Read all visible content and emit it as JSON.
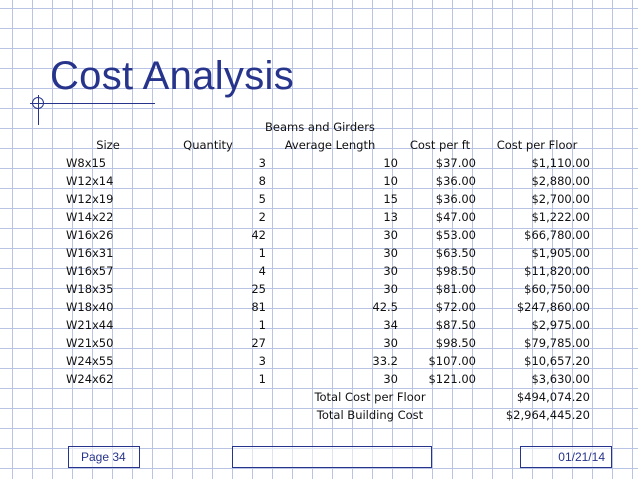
{
  "title": "Cost Analysis",
  "table": {
    "group_header": "Beams and Girders",
    "columns": [
      "Size",
      "Quantity",
      "Average Length",
      "Cost per ft",
      "Cost per Floor"
    ],
    "rows": [
      [
        "W8x15",
        "3",
        "10",
        "$37.00",
        "$1,110.00"
      ],
      [
        "W12x14",
        "8",
        "10",
        "$36.00",
        "$2,880.00"
      ],
      [
        "W12x19",
        "5",
        "15",
        "$36.00",
        "$2,700.00"
      ],
      [
        "W14x22",
        "2",
        "13",
        "$47.00",
        "$1,222.00"
      ],
      [
        "W16x26",
        "42",
        "30",
        "$53.00",
        "$66,780.00"
      ],
      [
        "W16x31",
        "1",
        "30",
        "$63.50",
        "$1,905.00"
      ],
      [
        "W16x57",
        "4",
        "30",
        "$98.50",
        "$11,820.00"
      ],
      [
        "W18x35",
        "25",
        "30",
        "$81.00",
        "$60,750.00"
      ],
      [
        "W18x40",
        "81",
        "42.5",
        "$72.00",
        "$247,860.00"
      ],
      [
        "W21x44",
        "1",
        "34",
        "$87.50",
        "$2,975.00"
      ],
      [
        "W21x50",
        "27",
        "30",
        "$98.50",
        "$79,785.00"
      ],
      [
        "W24x55",
        "3",
        "33.2",
        "$107.00",
        "$10,657.20"
      ],
      [
        "W24x62",
        "1",
        "30",
        "$121.00",
        "$3,630.00"
      ]
    ],
    "totals": [
      {
        "label": "Total Cost per Floor",
        "value": "$494,074.20"
      },
      {
        "label": "Total Building Cost",
        "value": "$2,964,445.20"
      }
    ]
  },
  "footer": {
    "page": "Page 34",
    "date": "01/21/14"
  },
  "colors": {
    "title": "#27348b",
    "grid": "#b9c3e6",
    "text": "#111111"
  }
}
